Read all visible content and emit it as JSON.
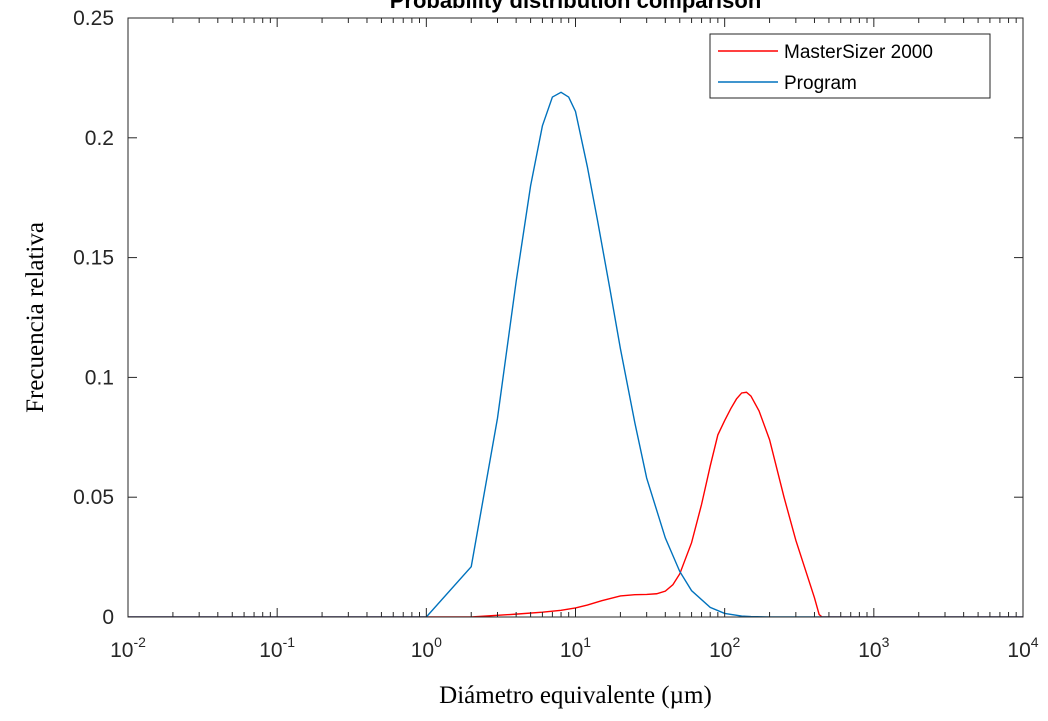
{
  "chart_data": {
    "type": "line",
    "title": "Probability distribution comparison",
    "xlabel": "Diámetro equivalente (µm)",
    "ylabel": "Frecuencia relativa",
    "xscale": "log",
    "xlim": [
      0.01,
      10000
    ],
    "ylim": [
      0,
      0.25
    ],
    "x_tick_labels": [
      {
        "base": "10",
        "exp": "-2"
      },
      {
        "base": "10",
        "exp": "-1"
      },
      {
        "base": "10",
        "exp": "0"
      },
      {
        "base": "10",
        "exp": "1"
      },
      {
        "base": "10",
        "exp": "2"
      },
      {
        "base": "10",
        "exp": "3"
      },
      {
        "base": "10",
        "exp": "4"
      }
    ],
    "y_ticks": [
      0,
      0.05,
      0.1,
      0.15,
      0.2,
      0.25
    ],
    "y_tick_labels": [
      "0",
      "0.05",
      "0.1",
      "0.15",
      "0.2",
      "0.25"
    ],
    "legend": {
      "placement": "top-right"
    },
    "grid": false,
    "series": [
      {
        "name": "MasterSizer 2000",
        "color": "#ff0000",
        "x": [
          0.01,
          1,
          2,
          4,
          6,
          8,
          10,
          12,
          15,
          20,
          25,
          30,
          35,
          40,
          45,
          50,
          60,
          70,
          80,
          90,
          100,
          110,
          120,
          130,
          140,
          150,
          170,
          200,
          250,
          300,
          400,
          430,
          450,
          10000
        ],
        "y": [
          0,
          0,
          0,
          0.0012,
          0.002,
          0.0028,
          0.0038,
          0.005,
          0.0068,
          0.0088,
          0.0093,
          0.0094,
          0.0097,
          0.0108,
          0.0135,
          0.018,
          0.031,
          0.047,
          0.063,
          0.076,
          0.082,
          0.087,
          0.091,
          0.0935,
          0.0938,
          0.0922,
          0.086,
          0.074,
          0.05,
          0.032,
          0.008,
          0.001,
          0,
          0
        ]
      },
      {
        "name": "Program",
        "color": "#0072bd",
        "x": [
          0.01,
          1,
          2,
          3,
          4,
          5,
          6,
          7,
          8,
          9,
          10,
          12,
          14,
          17,
          20,
          25,
          30,
          40,
          50,
          60,
          80,
          100,
          130,
          150,
          200,
          300,
          10000
        ],
        "y": [
          0,
          0,
          0.021,
          0.083,
          0.14,
          0.18,
          0.205,
          0.217,
          0.219,
          0.217,
          0.211,
          0.188,
          0.166,
          0.137,
          0.112,
          0.081,
          0.058,
          0.033,
          0.019,
          0.011,
          0.004,
          0.0015,
          0.0004,
          0.0002,
          0,
          0,
          0
        ]
      }
    ]
  }
}
